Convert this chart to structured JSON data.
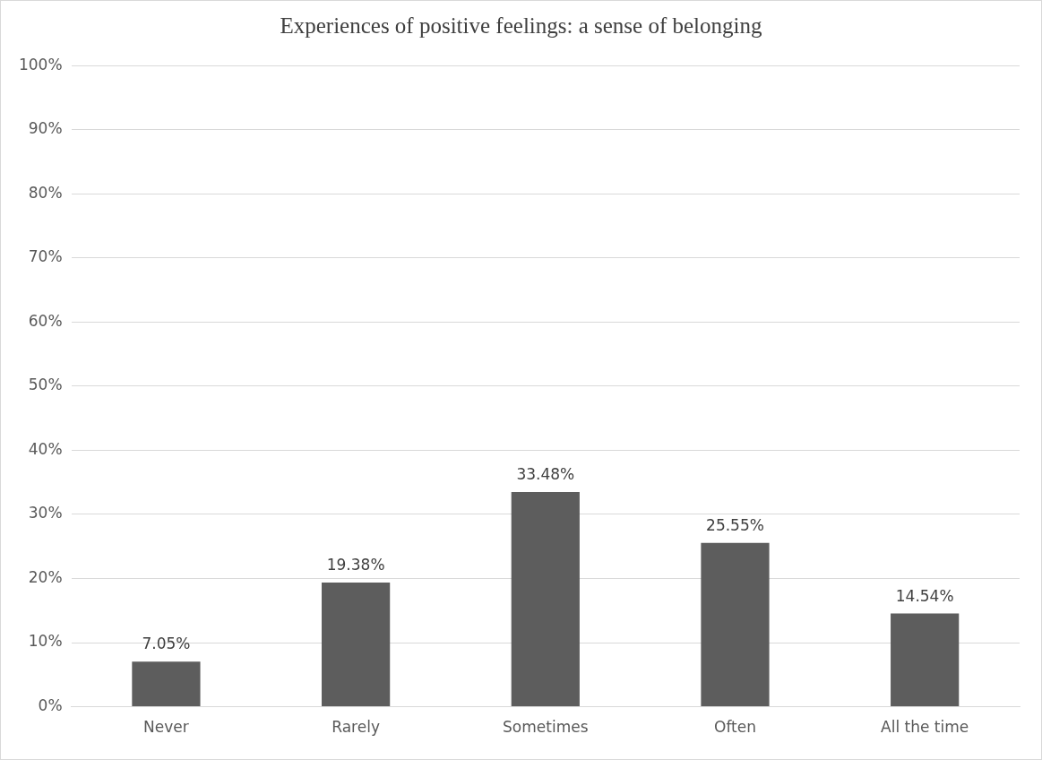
{
  "chart_data": {
    "type": "bar",
    "title": "Experiences of positive feelings: a sense of belonging",
    "categories": [
      "Never",
      "Rarely",
      "Sometimes",
      "Often",
      "All the time"
    ],
    "values": [
      7.05,
      19.38,
      33.48,
      25.55,
      14.54
    ],
    "value_labels": [
      "7.05%",
      "19.38%",
      "33.48%",
      "25.55%",
      "14.54%"
    ],
    "color": "#5d5d5d",
    "ylim": [
      0,
      100
    ],
    "yticks": [
      {
        "value": 0,
        "label": "0%"
      },
      {
        "value": 10,
        "label": "10%"
      },
      {
        "value": 20,
        "label": "20%"
      },
      {
        "value": 30,
        "label": "30%"
      },
      {
        "value": 40,
        "label": "40%"
      },
      {
        "value": 50,
        "label": "50%"
      },
      {
        "value": 60,
        "label": "60%"
      },
      {
        "value": 70,
        "label": "70%"
      },
      {
        "value": 80,
        "label": "80%"
      },
      {
        "value": 90,
        "label": "90%"
      },
      {
        "value": 100,
        "label": "100%"
      }
    ],
    "grid": "y",
    "legend": false
  }
}
